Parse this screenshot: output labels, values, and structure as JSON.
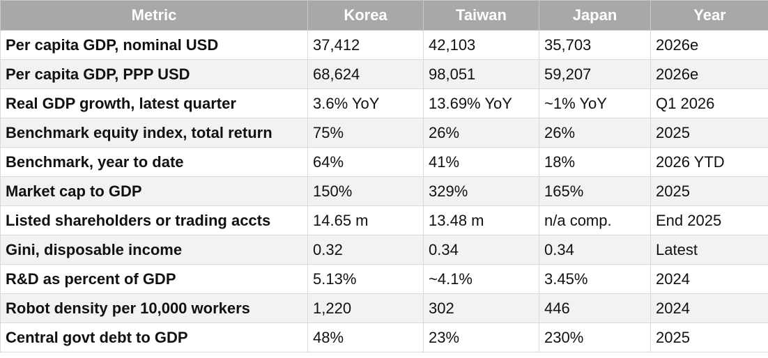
{
  "table": {
    "headers": [
      "Metric",
      "Korea",
      "Taiwan",
      "Japan",
      "Year"
    ],
    "rows": [
      [
        "Per capita GDP, nominal USD",
        "37,412",
        "42,103",
        "35,703",
        "2026e"
      ],
      [
        "Per capita GDP, PPP USD",
        "68,624",
        "98,051",
        "59,207",
        "2026e"
      ],
      [
        "Real GDP growth, latest quarter",
        "3.6% YoY",
        "13.69% YoY",
        "~1% YoY",
        "Q1 2026"
      ],
      [
        "Benchmark equity index, total return",
        "75%",
        "26%",
        "26%",
        "2025"
      ],
      [
        "Benchmark, year to date",
        "64%",
        "41%",
        "18%",
        "2026 YTD"
      ],
      [
        "Market cap to GDP",
        "150%",
        "329%",
        "165%",
        "2025"
      ],
      [
        "Listed shareholders or trading accts",
        "14.65 m",
        "13.48 m",
        "n/a comp.",
        "End 2025"
      ],
      [
        "Gini, disposable income",
        "0.32",
        "0.34",
        "0.34",
        "Latest"
      ],
      [
        "R&D as percent of GDP",
        "5.13%",
        "~4.1%",
        "3.45%",
        "2024"
      ],
      [
        "Robot density per 10,000 workers",
        "1,220",
        "302",
        "446",
        "2024"
      ],
      [
        "Central govt debt to GDP",
        "48%",
        "23%",
        "230%",
        "2025"
      ]
    ]
  },
  "colors": {
    "header_bg": "#a8a8a8",
    "header_text": "#ffffff",
    "stripe": "#f2f2f2",
    "grid_line": "#d9d9d9"
  }
}
